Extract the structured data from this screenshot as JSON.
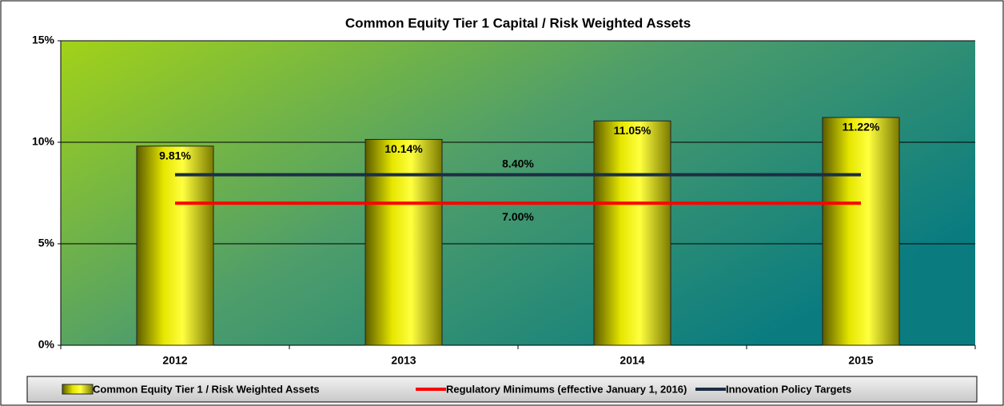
{
  "chart_data": {
    "type": "bar",
    "title": "Common Equity Tier 1 Capital / Risk Weighted Assets",
    "categories": [
      "2012",
      "2013",
      "2014",
      "2015"
    ],
    "series": [
      {
        "name": "Common Equity Tier 1 / Risk Weighted Assets",
        "type": "bar",
        "color": "#ffff00",
        "values": [
          9.81,
          10.14,
          11.05,
          11.22
        ],
        "value_labels": [
          "9.81%",
          "10.14%",
          "11.05%",
          "11.22%"
        ]
      },
      {
        "name": "Regulatory Minimums (effective January 1, 2016)",
        "type": "line",
        "color": "#ff0000",
        "values": [
          7.0,
          7.0,
          7.0,
          7.0
        ],
        "value_labels": [
          null,
          "7.00%",
          null,
          null
        ]
      },
      {
        "name": "Innovation Policy Targets",
        "type": "line",
        "color": "#1c2e44",
        "values": [
          8.4,
          8.4,
          8.4,
          8.4
        ],
        "value_labels": [
          null,
          "8.40%",
          null,
          null
        ]
      }
    ],
    "ylim": [
      0,
      15
    ],
    "yticks": [
      {
        "value": 0,
        "label": "0%"
      },
      {
        "value": 5,
        "label": "5%"
      },
      {
        "value": 10,
        "label": "10%"
      },
      {
        "value": 15,
        "label": "15%"
      }
    ],
    "grid": true,
    "legend": "bottom"
  }
}
